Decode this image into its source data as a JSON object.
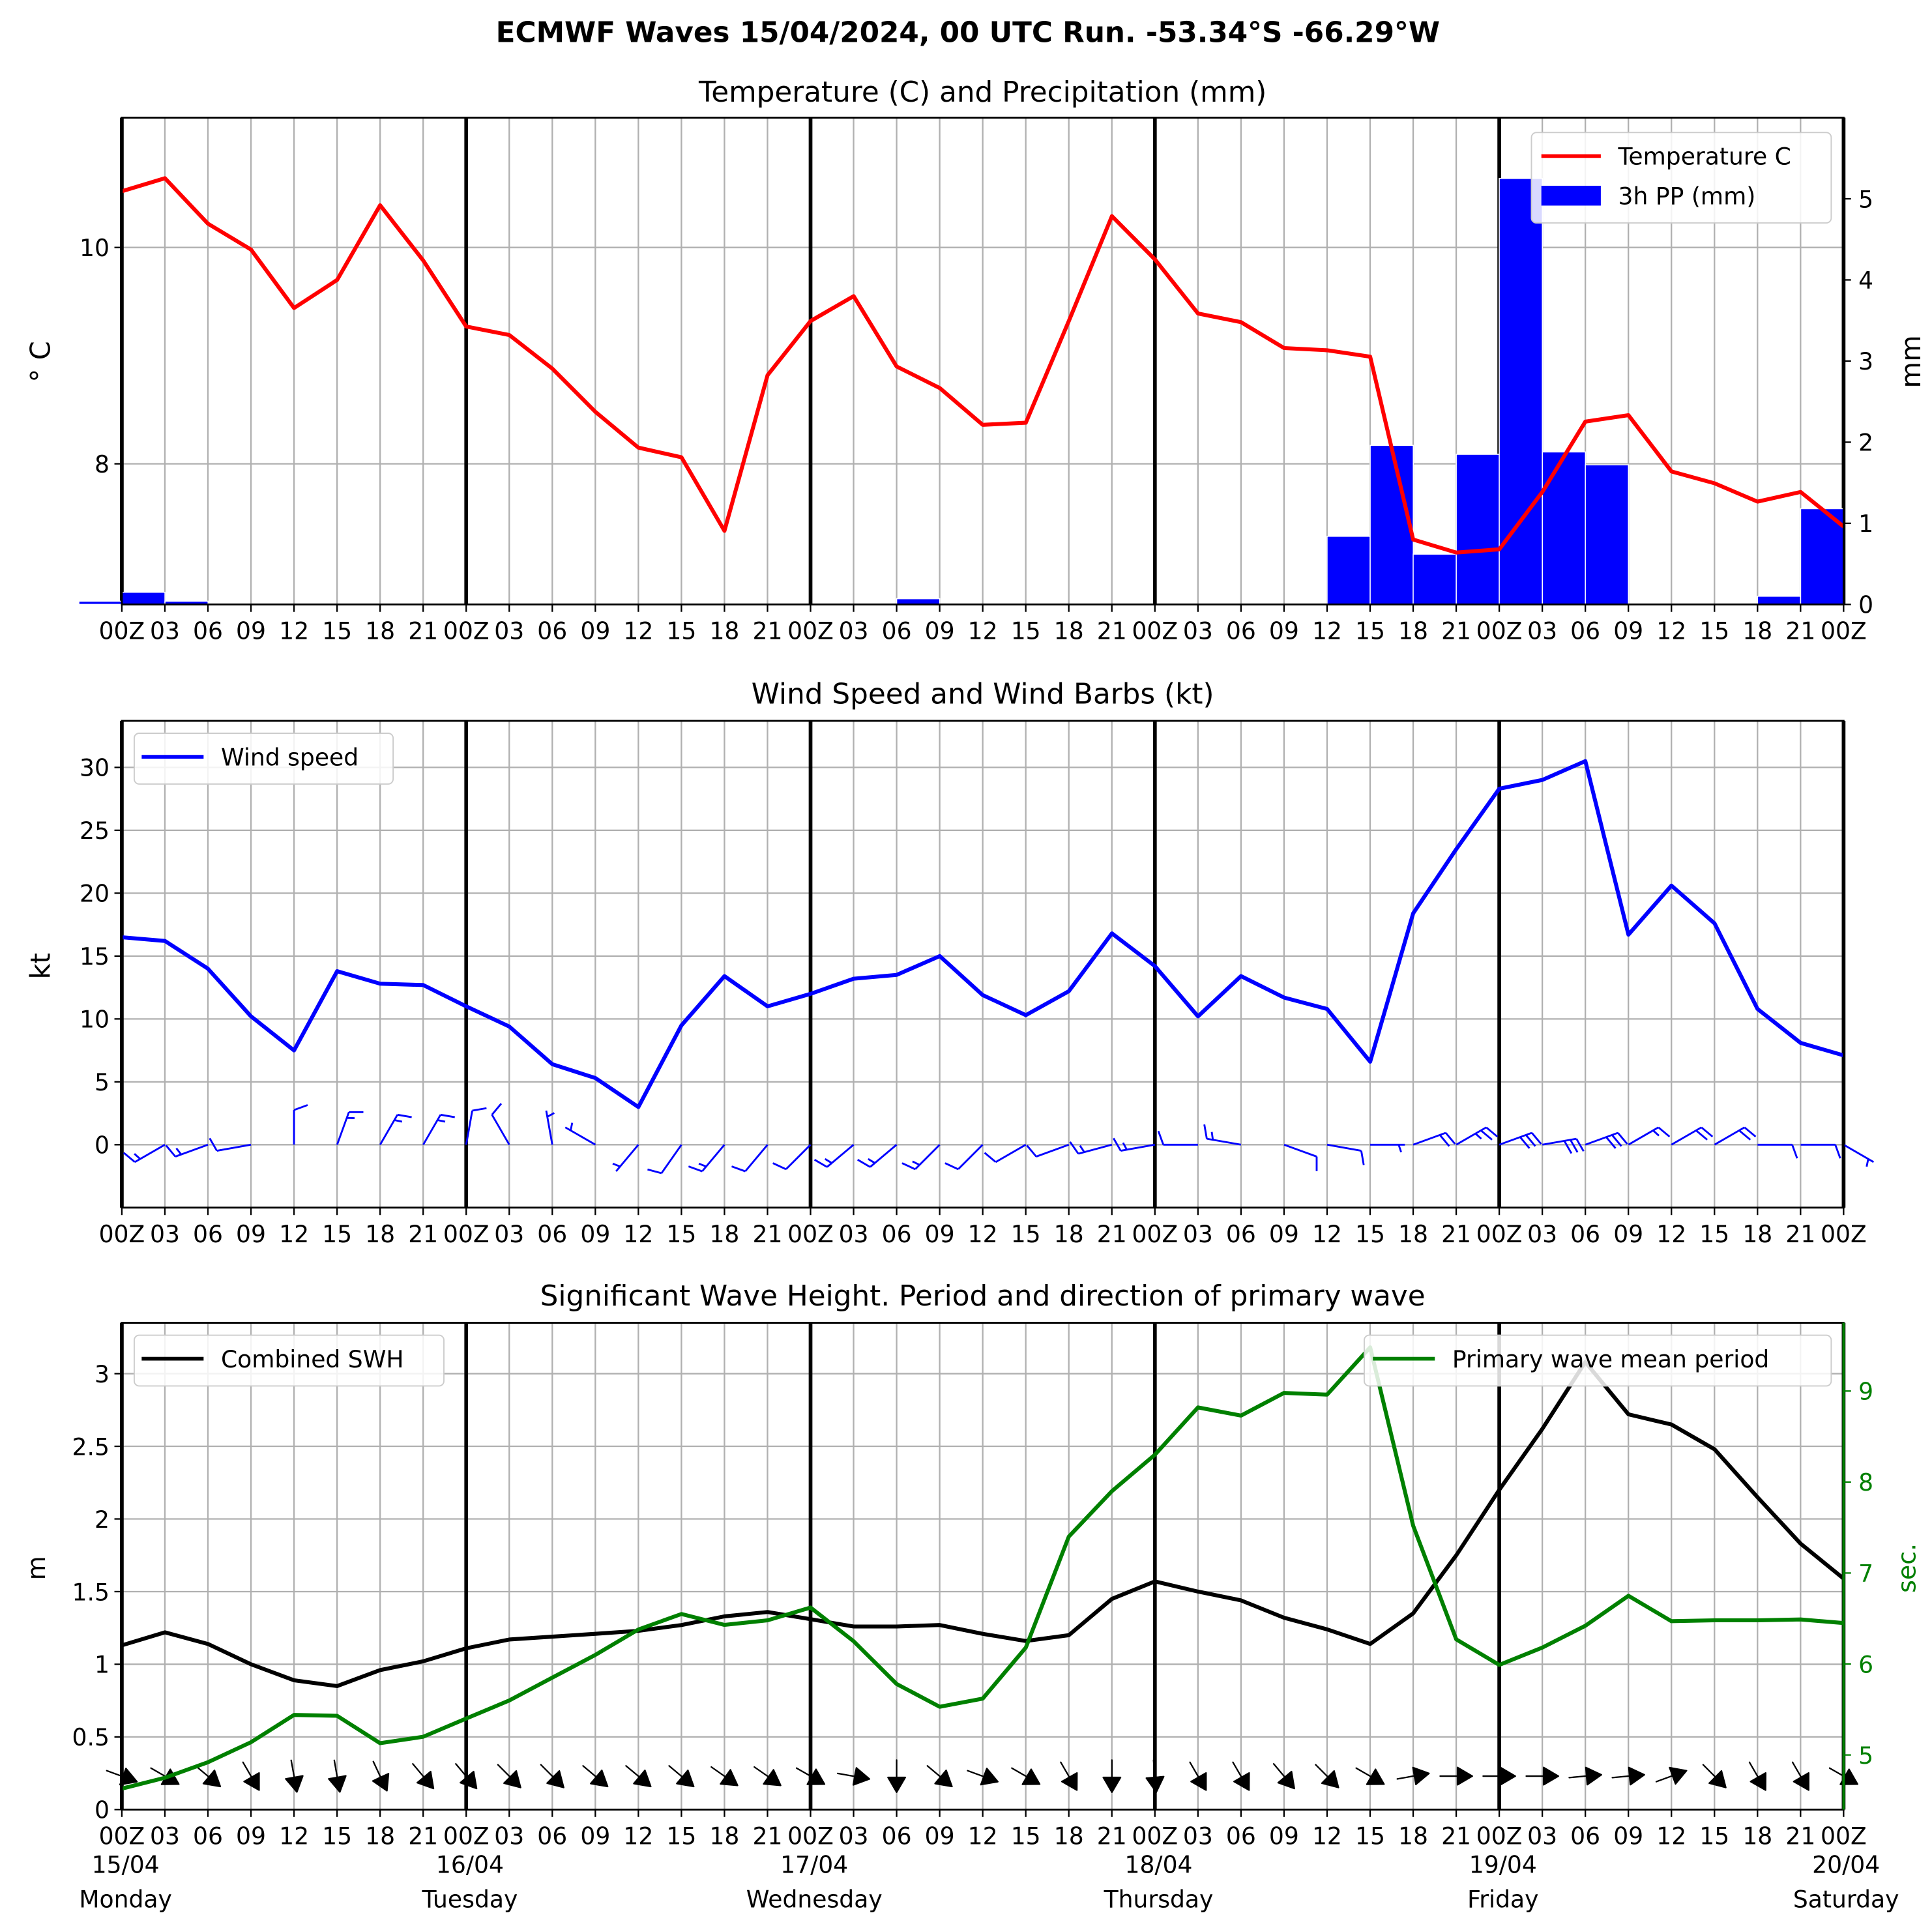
{
  "suptitle": "ECMWF Waves 15/04/2024, 00 UTC Run. -53.34°S -66.29°W",
  "tick_labels": [
    "00Z",
    "03",
    "06",
    "09",
    "12",
    "15",
    "18",
    "21",
    "00Z",
    "03",
    "06",
    "09",
    "12",
    "15",
    "18",
    "21",
    "00Z",
    "03",
    "06",
    "09",
    "12",
    "15",
    "18",
    "21",
    "00Z",
    "03",
    "06",
    "09",
    "12",
    "15",
    "18",
    "21",
    "00Z",
    "03",
    "06",
    "09",
    "12",
    "15",
    "18",
    "21",
    "00Z"
  ],
  "panel1": {
    "title": "Temperature (C) and Precipitation (mm)",
    "ylabel_left": "° C",
    "ylabel_right": "mm",
    "legend": {
      "temperature": "Temperature C",
      "precip": "3h PP (mm)"
    }
  },
  "panel2": {
    "title": "Wind Speed and Wind Barbs (kt)",
    "ylabel": "kt",
    "legend": {
      "wind": "Wind speed"
    }
  },
  "panel3": {
    "title": "Significant Wave Height. Period and direction of primary wave",
    "ylabel_left": "m",
    "ylabel_right": "sec.",
    "legend": {
      "swh": "Combined SWH",
      "period": "Primary wave mean period"
    }
  },
  "date_labels": [
    {
      "date": "15/04",
      "day": "Monday"
    },
    {
      "date": "16/04",
      "day": "Tuesday"
    },
    {
      "date": "17/04",
      "day": "Wednesday"
    },
    {
      "date": "18/04",
      "day": "Thursday"
    },
    {
      "date": "19/04",
      "day": "Friday"
    },
    {
      "date": "20/04",
      "day": "Saturday"
    }
  ],
  "colors": {
    "temperature": "#ff0000",
    "precip": "#0000ff",
    "wind": "#0000ff",
    "swh": "#000000",
    "period": "#008000",
    "grid": "#b0b0b0"
  },
  "chart_data": [
    {
      "type": "line",
      "title": "Temperature (C) and Precipitation (mm)",
      "x_unit": "hours from 15/04/2024 00Z (3-hourly)",
      "x_range": [
        0,
        120
      ],
      "ylabel": "° C",
      "ylim": [
        6.7,
        11.2
      ],
      "yticks": [
        8,
        10
      ],
      "y2label": "mm",
      "y2lim": [
        0,
        6.0
      ],
      "y2ticks": [
        0,
        1,
        2,
        3,
        4,
        5
      ],
      "grid": true,
      "legend_position": "top-right",
      "series": [
        {
          "name": "Temperature C",
          "type": "line",
          "axis": "left",
          "values": [
            10.52,
            10.64,
            10.22,
            9.98,
            9.44,
            9.7,
            10.39,
            9.88,
            9.27,
            9.19,
            8.88,
            8.48,
            8.15,
            8.06,
            7.38,
            8.82,
            9.32,
            9.55,
            8.9,
            8.7,
            8.36,
            8.38,
            9.32,
            10.29,
            9.89,
            9.39,
            9.31,
            9.07,
            9.05,
            8.99,
            7.3,
            7.18,
            7.21,
            7.74,
            8.39,
            8.45,
            7.93,
            7.82,
            7.65,
            7.74,
            7.42
          ]
        },
        {
          "name": "3h PP (mm)",
          "type": "bar",
          "axis": "right",
          "values": [
            0.04,
            0.15,
            0.04,
            0,
            0,
            0,
            0,
            0,
            0,
            0,
            0,
            0,
            0,
            0,
            0,
            0,
            0,
            0,
            0,
            0.07,
            0,
            0,
            0,
            0,
            0,
            0,
            0,
            0,
            0,
            0.84,
            1.96,
            0.62,
            1.85,
            5.25,
            1.88,
            1.72,
            0,
            0,
            0,
            0.1,
            1.18
          ]
        }
      ]
    },
    {
      "type": "line",
      "title": "Wind Speed and Wind Barbs (kt)",
      "x_unit": "hours from 15/04/2024 00Z (3-hourly)",
      "x_range": [
        0,
        120
      ],
      "ylabel": "kt",
      "ylim": [
        -5,
        33.7
      ],
      "yticks": [
        0,
        5,
        10,
        15,
        20,
        25,
        30
      ],
      "grid": true,
      "legend_position": "top-left",
      "series": [
        {
          "name": "Wind speed",
          "type": "line",
          "values": [
            16.5,
            16.2,
            14.0,
            10.2,
            7.5,
            13.8,
            12.8,
            12.7,
            11.0,
            9.4,
            6.4,
            5.3,
            3.0,
            9.5,
            13.4,
            11.0,
            12.0,
            13.2,
            13.5,
            15.0,
            11.9,
            10.3,
            12.2,
            16.8,
            14.2,
            10.2,
            13.4,
            11.7,
            10.8,
            6.6,
            18.4,
            23.5,
            28.3,
            29.0,
            30.5,
            16.7,
            20.6,
            17.6,
            10.8,
            8.1,
            7.1
          ]
        },
        {
          "name": "wind barbs",
          "type": "barbs",
          "direction_from_deg": [
            240,
            240,
            250,
            260,
            0,
            20,
            30,
            30,
            10,
            330,
            350,
            300,
            220,
            215,
            220,
            220,
            225,
            230,
            230,
            225,
            225,
            240,
            250,
            255,
            260,
            270,
            280,
            110,
            100,
            90,
            70,
            60,
            70,
            80,
            70,
            60,
            60,
            60,
            90,
            90,
            120
          ]
        }
      ]
    },
    {
      "type": "line",
      "title": "Significant Wave Height. Period and direction of primary wave",
      "x_unit": "hours from 15/04/2024 00Z (3-hourly)",
      "x_range": [
        0,
        120
      ],
      "ylabel": "m",
      "ylim": [
        0,
        3.35
      ],
      "yticks": [
        0.0,
        0.5,
        1.0,
        1.5,
        2.0,
        2.5,
        3.0
      ],
      "y2label": "sec.",
      "y2lim": [
        4.4,
        9.75
      ],
      "y2ticks": [
        5,
        6,
        7,
        8,
        9
      ],
      "grid": true,
      "legend_position": "top-left / top-right",
      "series": [
        {
          "name": "Combined SWH",
          "type": "line",
          "axis": "left",
          "values": [
            1.13,
            1.22,
            1.14,
            1.0,
            0.89,
            0.85,
            0.96,
            1.02,
            1.11,
            1.17,
            1.19,
            1.21,
            1.23,
            1.27,
            1.33,
            1.36,
            1.31,
            1.26,
            1.26,
            1.27,
            1.21,
            1.16,
            1.2,
            1.45,
            1.57,
            1.5,
            1.44,
            1.32,
            1.24,
            1.14,
            1.35,
            1.75,
            2.2,
            2.62,
            3.08,
            2.72,
            2.65,
            2.48,
            2.15,
            1.83,
            1.59
          ]
        },
        {
          "name": "Primary wave mean period",
          "type": "line",
          "axis": "right",
          "values": [
            4.63,
            4.75,
            4.92,
            5.14,
            5.44,
            5.43,
            5.13,
            5.2,
            5.4,
            5.6,
            5.85,
            6.1,
            6.38,
            6.55,
            6.43,
            6.48,
            6.62,
            6.25,
            5.78,
            5.53,
            5.62,
            6.18,
            7.4,
            7.9,
            8.3,
            8.82,
            8.73,
            8.98,
            8.96,
            9.48,
            7.52,
            6.27,
            5.99,
            6.18,
            6.42,
            6.75,
            6.47,
            6.48,
            6.48,
            6.49,
            6.45
          ]
        },
        {
          "name": "primary wave direction arrows",
          "type": "arrows",
          "direction_from_deg": [
            290,
            300,
            310,
            330,
            350,
            350,
            335,
            320,
            320,
            315,
            315,
            310,
            310,
            310,
            305,
            305,
            300,
            280,
            0,
            310,
            290,
            300,
            330,
            360,
            355,
            330,
            330,
            320,
            315,
            300,
            260,
            270,
            270,
            270,
            265,
            265,
            250,
            315,
            330,
            330,
            300
          ]
        }
      ]
    }
  ]
}
